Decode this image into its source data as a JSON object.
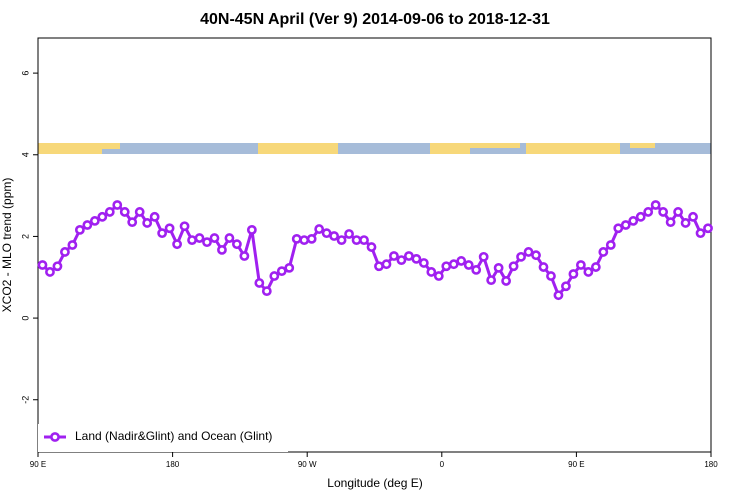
{
  "chart_data": {
    "type": "line",
    "title": "40N-45N April (Ver 9)   2014-09-06 to 2018-12-31",
    "x_label": "Longitude (deg E)",
    "y_label": "XCO2 - MLO trend (ppm)",
    "x": [
      93,
      98,
      103,
      108,
      113,
      118,
      123,
      128,
      133,
      138,
      143,
      148,
      153,
      158,
      163,
      168,
      173,
      178,
      183,
      188,
      193,
      198,
      203,
      208,
      213,
      218,
      223,
      228,
      233,
      238,
      243,
      248,
      253,
      258,
      263,
      268,
      273,
      278,
      283,
      288,
      293,
      298,
      303,
      308,
      313,
      318,
      323,
      328,
      333,
      338,
      343,
      348,
      353,
      358,
      363,
      368,
      373,
      378,
      383,
      388,
      393,
      398,
      403,
      408,
      413,
      418,
      423,
      428,
      433,
      438,
      443,
      448,
      453,
      458,
      463,
      468,
      473,
      478,
      483,
      488,
      493,
      498,
      503,
      508,
      513,
      518,
      523,
      528,
      533,
      538
    ],
    "series": [
      {
        "name": "Land (Nadir&Glint) and Ocean (Glint)",
        "color": "#a020f0",
        "values": [
          1.3,
          1.13,
          1.27,
          1.62,
          1.79,
          2.16,
          2.28,
          2.38,
          2.48,
          2.6,
          2.77,
          2.6,
          2.35,
          2.6,
          2.33,
          2.48,
          2.08,
          2.2,
          1.81,
          2.25,
          1.91,
          1.96,
          1.86,
          1.96,
          1.67,
          1.96,
          1.81,
          1.52,
          2.16,
          0.86,
          0.66,
          1.03,
          1.15,
          1.23,
          1.94,
          1.91,
          1.94,
          2.18,
          2.08,
          2.01,
          1.91,
          2.06,
          1.91,
          1.91,
          1.74,
          1.27,
          1.32,
          1.52,
          1.42,
          1.52,
          1.45,
          1.35,
          1.13,
          1.03,
          1.27,
          1.32,
          1.4,
          1.3,
          1.18,
          1.5,
          0.93,
          1.23,
          0.91,
          1.27,
          1.5,
          1.62,
          1.54,
          1.25,
          1.03,
          0.56,
          0.78,
          1.08,
          1.3,
          1.13,
          1.25,
          1.62,
          1.79,
          2.2,
          2.28,
          2.38,
          2.48,
          2.6,
          2.77,
          2.6,
          2.35,
          2.6,
          2.33,
          2.48,
          2.08,
          2.2
        ]
      }
    ],
    "xlim": [
      90,
      540
    ],
    "xticks": [
      {
        "value": 90,
        "label": "90 E"
      },
      180,
      {
        "value": 270,
        "label": "90 W"
      },
      {
        "value": 360,
        "label": "0"
      },
      {
        "value": 450,
        "label": "90 E"
      },
      {
        "value": 540,
        "label": "180"
      }
    ],
    "ylim": [
      -3.28,
      6.86
    ],
    "yticks": [
      -2,
      0,
      2,
      4,
      6
    ],
    "legend": "bottom-left"
  }
}
